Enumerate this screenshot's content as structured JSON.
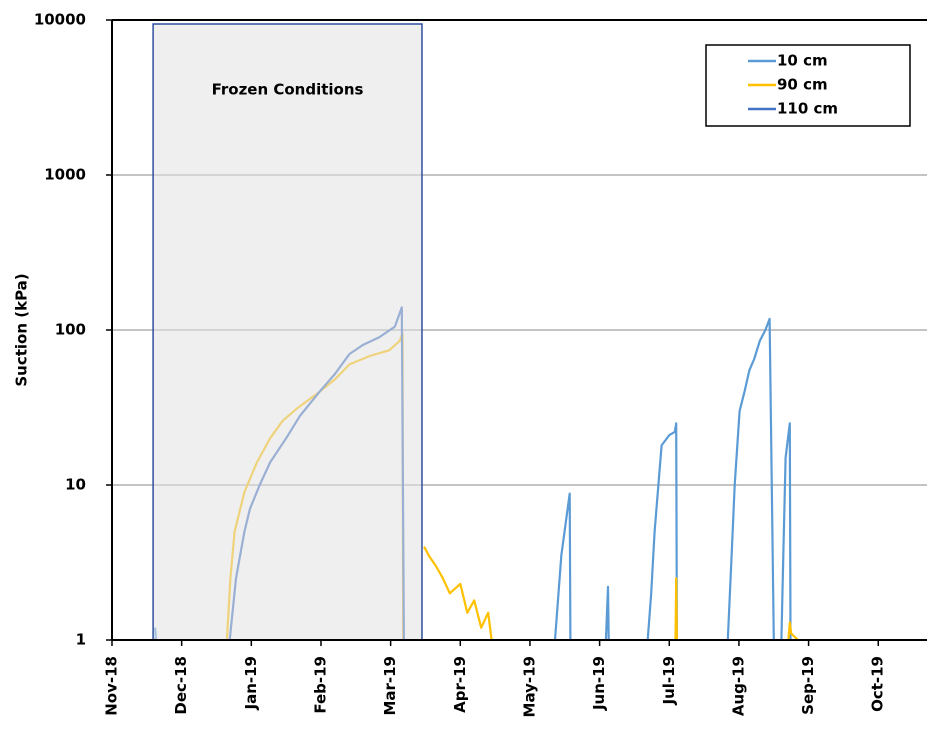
{
  "chart_data": {
    "type": "line",
    "y_label": "Suction (kPa)",
    "log_y": true,
    "grid": true,
    "legend": "upper right",
    "xlim": [
      0,
      11.7
    ],
    "xticks": [
      {
        "value": 0,
        "label": "Nov-18"
      },
      {
        "value": 1,
        "label": "Dec-18"
      },
      {
        "value": 2,
        "label": "Jan-19"
      },
      {
        "value": 3,
        "label": "Feb-19"
      },
      {
        "value": 4,
        "label": "Mar-19"
      },
      {
        "value": 5,
        "label": "Apr-19"
      },
      {
        "value": 6,
        "label": "May-19"
      },
      {
        "value": 7,
        "label": "Jun-19"
      },
      {
        "value": 8,
        "label": "Jul-19"
      },
      {
        "value": 9,
        "label": "Aug-19"
      },
      {
        "value": 10,
        "label": "Sep-19"
      },
      {
        "value": 11,
        "label": "Oct-19"
      }
    ],
    "ylim": [
      1,
      10000
    ],
    "yticks": [
      1,
      10,
      100,
      1000,
      10000
    ],
    "frozen_period": {
      "label": "Frozen Conditions",
      "x": [
        0.59,
        4.45
      ]
    },
    "series": [
      {
        "name": "10 cm",
        "color": "#5b9bd5",
        "x": [
          0.62,
          0.63,
          null,
          6.36,
          6.45,
          6.52,
          6.57,
          6.58,
          null,
          7.09,
          7.12,
          7.13,
          null,
          7.69,
          7.74,
          7.79,
          7.89,
          8.0,
          8.08,
          8.1,
          8.11,
          null,
          8.84,
          8.9,
          8.94,
          9.01,
          9.08,
          9.15,
          9.22,
          9.3,
          9.38,
          9.44,
          9.5,
          null,
          9.61,
          9.64,
          9.67,
          9.73,
          9.74
        ],
        "values": [
          1.2,
          1,
          null,
          1,
          3.5,
          6,
          8.8,
          1,
          null,
          1,
          2.2,
          1,
          null,
          1,
          2,
          5,
          18,
          21,
          22,
          25,
          1,
          null,
          1,
          4,
          10,
          30,
          40,
          55,
          65,
          85,
          100,
          118,
          1,
          null,
          1,
          4,
          15,
          25,
          1
        ]
      },
      {
        "name": "90 cm",
        "color": "#ffc000",
        "x": [
          1.65,
          1.7,
          1.76,
          1.9,
          2.08,
          2.27,
          2.45,
          2.65,
          2.98,
          3.2,
          3.41,
          3.7,
          3.98,
          4.13,
          4.17,
          4.18,
          null,
          4.48,
          4.55,
          4.65,
          4.75,
          4.85,
          5.0,
          5.1,
          5.2,
          5.3,
          5.4,
          5.45,
          null,
          8.09,
          8.1,
          8.11,
          null,
          9.71,
          9.73,
          9.75,
          9.85
        ],
        "values": [
          1,
          2.5,
          5,
          9,
          14,
          20,
          26,
          31,
          40,
          48,
          60,
          68,
          74,
          85,
          95,
          1,
          null,
          4,
          3.5,
          3,
          2.5,
          2,
          2.3,
          1.5,
          1.8,
          1.2,
          1.5,
          1,
          null,
          1,
          2.5,
          1,
          null,
          1,
          1.3,
          1.1,
          1
        ]
      },
      {
        "name": "110 cm",
        "color": "#4472c4",
        "x": [
          1.69,
          1.78,
          1.9,
          1.98,
          2.12,
          2.27,
          2.5,
          2.7,
          2.98,
          3.2,
          3.41,
          3.6,
          3.84,
          4.06,
          4.16,
          4.19
        ],
        "values": [
          1,
          2.5,
          5,
          7,
          10,
          14,
          20,
          28,
          40,
          52,
          70,
          80,
          90,
          105,
          140,
          1
        ]
      }
    ]
  }
}
